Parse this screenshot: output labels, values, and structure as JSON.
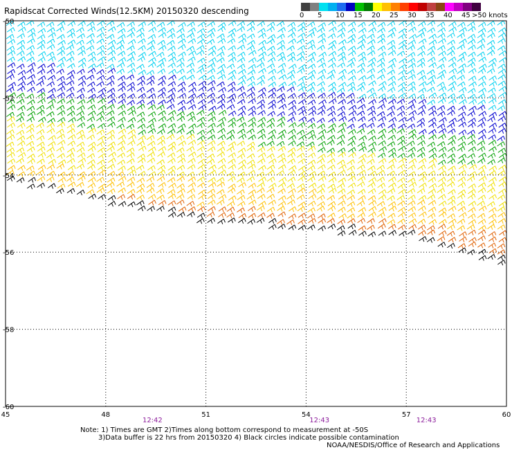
{
  "title": "Rapidscat Corrected Winds(12.5KM) 20150320 descending",
  "legend": {
    "colors": [
      "#404040",
      "#808080",
      "#00e0f0",
      "#00b0f0",
      "#1e6cf0",
      "#0000c0",
      "#00c000",
      "#007800",
      "#ffff00",
      "#ffc000",
      "#ff8000",
      "#ff4000",
      "#ff0000",
      "#c00000",
      "#c04040",
      "#8b4513",
      "#ff00ff",
      "#c000c0",
      "#800080",
      "#400040"
    ],
    "labels": [
      "0",
      "5",
      "10",
      "15",
      "20",
      "25",
      "30",
      "35",
      "40",
      "45"
    ],
    "unit_label": ">50 knots"
  },
  "notes": {
    "line1": "Note: 1) Times are GMT 2)Times along bottom correspond to measurement at -50S",
    "line2": "3)Data buffer is 22 hrs from 20150320 4) Black circles indicate possible contamination"
  },
  "credit": "NOAA/NESDIS/Office of Research and Applications",
  "chart_data": {
    "type": "map",
    "x_ticks": [
      45,
      48,
      51,
      54,
      57,
      60
    ],
    "y_ticks": [
      -50,
      -52,
      -54,
      -56,
      -58,
      -60
    ],
    "xlim": [
      45,
      60
    ],
    "ylim": [
      -60,
      -50
    ],
    "grid": true,
    "times": [
      {
        "lon": 49.4,
        "label": "12:42"
      },
      {
        "lon": 54.4,
        "label": "12:43"
      },
      {
        "lon": 57.6,
        "label": "12:43"
      }
    ],
    "swath": {
      "south_edge": [
        [
          45,
          -54.2
        ],
        [
          48,
          -54.8
        ],
        [
          51,
          -55.3
        ],
        [
          54,
          -55.5
        ],
        [
          57,
          -55.7
        ],
        [
          60,
          -56.4
        ]
      ],
      "wind_zones": [
        {
          "color": "#00d0f0",
          "lat_top": -50.0
        },
        {
          "color": "#0000d0",
          "lat_top": -51.1
        },
        {
          "color": "#00a000",
          "lat_top": -51.9
        },
        {
          "color": "#f0e000",
          "lat_top": -52.6
        },
        {
          "color": "#ffc000",
          "lat_top": -53.7
        },
        {
          "color": "#e06000",
          "lat_top": -54.3
        },
        {
          "color": "#c02020",
          "lat_top": -55.0
        }
      ]
    }
  }
}
